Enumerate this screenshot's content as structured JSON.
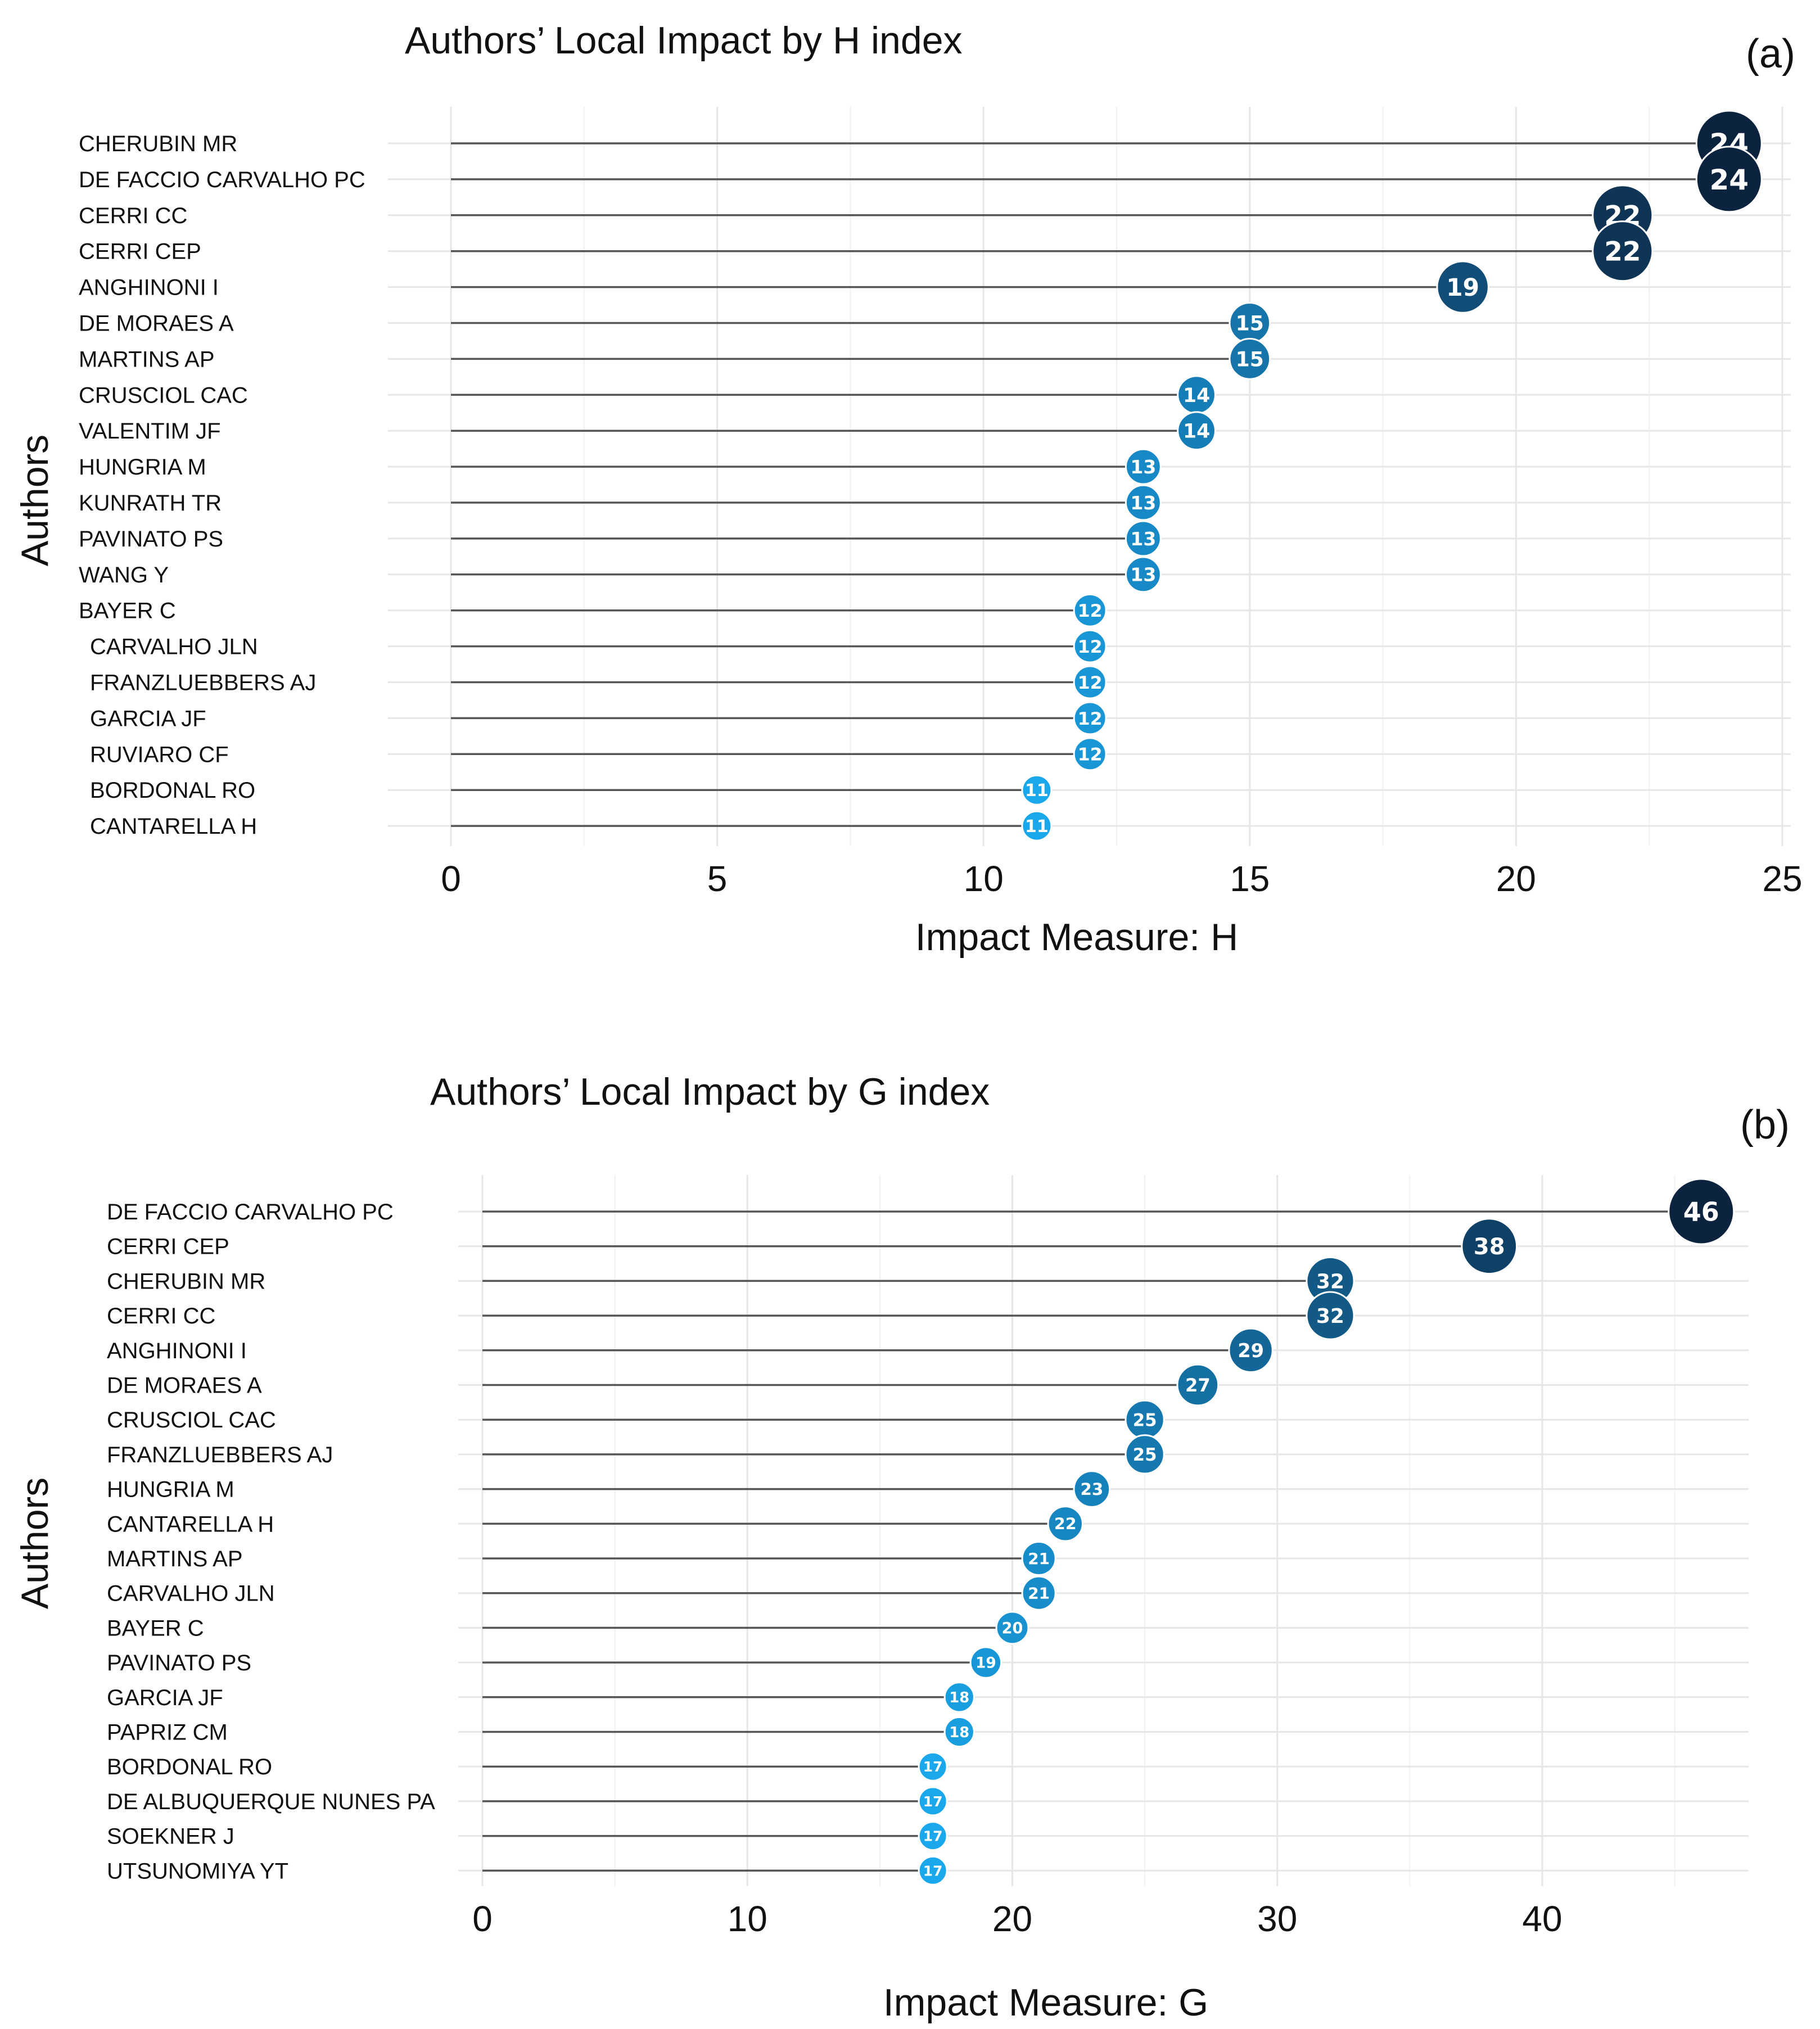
{
  "chart_data": [
    {
      "type": "lollipop",
      "title": "Authors’ Local Impact by H index",
      "panel_label": "(a)",
      "xlabel": "Impact Measure: H",
      "ylabel": "Authors",
      "xlim": [
        0,
        25
      ],
      "xticks": [
        0,
        5,
        10,
        15,
        20,
        25
      ],
      "categories": [
        "CHERUBIN MR",
        "DE FACCIO CARVALHO PC",
        "CERRI CC",
        "CERRI CEP",
        "ANGHINONI I",
        "DE MORAES A",
        "MARTINS AP",
        "CRUSCIOL CAC",
        "VALENTIM JF",
        "HUNGRIA M",
        "KUNRATH TR",
        "PAVINATO PS",
        "WANG Y",
        "BAYER C",
        "CARVALHO JLN",
        "FRANZLUEBBERS AJ",
        "GARCIA JF",
        "RUVIARO CF",
        "BORDONAL RO",
        "CANTARELLA H"
      ],
      "values": [
        24,
        24,
        22,
        22,
        19,
        15,
        15,
        14,
        14,
        13,
        13,
        13,
        13,
        12,
        12,
        12,
        12,
        12,
        11,
        11
      ],
      "color_scale": {
        "low": "#1aa7ec",
        "high": "#0c2340"
      },
      "grid": true
    },
    {
      "type": "lollipop",
      "title": "Authors’ Local Impact by G index",
      "panel_label": "(b)",
      "xlabel": "Impact Measure: G",
      "ylabel": "Authors",
      "xlim": [
        0,
        48
      ],
      "xticks": [
        0,
        10,
        20,
        30,
        40
      ],
      "categories": [
        "DE FACCIO CARVALHO PC",
        "CERRI CEP",
        "CHERUBIN MR",
        "CERRI CC",
        "ANGHINONI I",
        "DE MORAES A",
        "CRUSCIOL CAC",
        "FRANZLUEBBERS AJ",
        "HUNGRIA M",
        "CANTARELLA H",
        "MARTINS AP",
        "CARVALHO JLN",
        "BAYER C",
        "PAVINATO PS",
        "GARCIA JF",
        "PAPRIZ CM",
        "BORDONAL RO",
        "DE ALBUQUERQUE NUNES PA",
        "SOEKNER J",
        "UTSUNOMIYA YT"
      ],
      "values": [
        46,
        38,
        32,
        32,
        29,
        27,
        25,
        25,
        23,
        22,
        21,
        21,
        20,
        19,
        18,
        18,
        17,
        17,
        17,
        17
      ],
      "color_scale": {
        "low": "#1aa7ec",
        "high": "#0c2340"
      },
      "grid": true
    }
  ]
}
